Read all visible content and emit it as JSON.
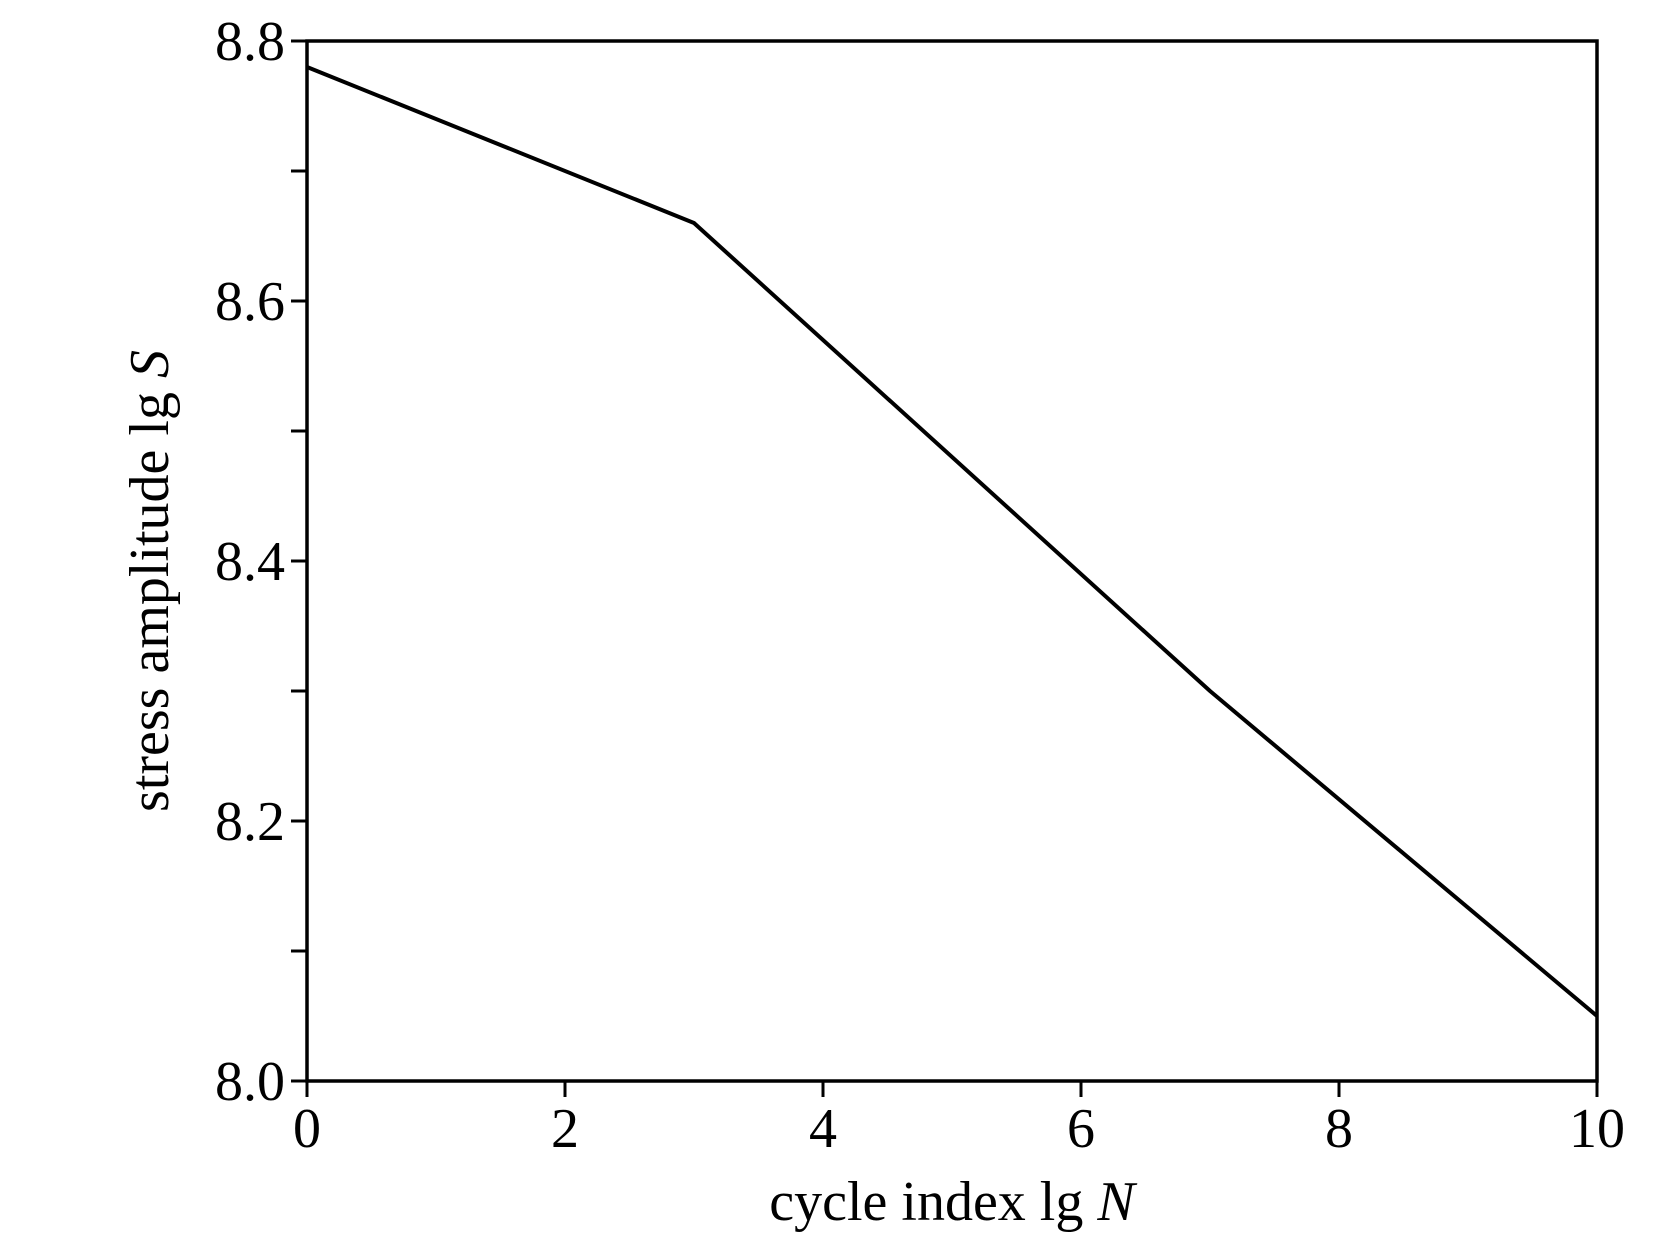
{
  "chart_data": {
    "type": "line",
    "title": "",
    "xlabel": "cycle index lg N",
    "xlabel_main": "cycle index lg ",
    "xlabel_var": "N",
    "ylabel": "stress amplitude lg S",
    "ylabel_main": "stress amplitude lg ",
    "ylabel_var": "S",
    "xlim": [
      0,
      10
    ],
    "ylim": [
      8.0,
      8.8
    ],
    "x_ticks": [
      0,
      2,
      4,
      6,
      8,
      10
    ],
    "x_tick_labels": [
      "0",
      "2",
      "4",
      "6",
      "8",
      "10"
    ],
    "y_ticks_major": [
      8.0,
      8.2,
      8.4,
      8.6,
      8.8
    ],
    "y_tick_labels": [
      "8.0",
      "8.2",
      "8.4",
      "8.6",
      "8.8"
    ],
    "y_ticks_minor": [
      8.1,
      8.3,
      8.5,
      8.7
    ],
    "grid": false,
    "series": [
      {
        "color": "#000000",
        "x": [
          0,
          3,
          7,
          10
        ],
        "y": [
          8.78,
          8.66,
          8.3,
          8.05
        ]
      }
    ]
  }
}
